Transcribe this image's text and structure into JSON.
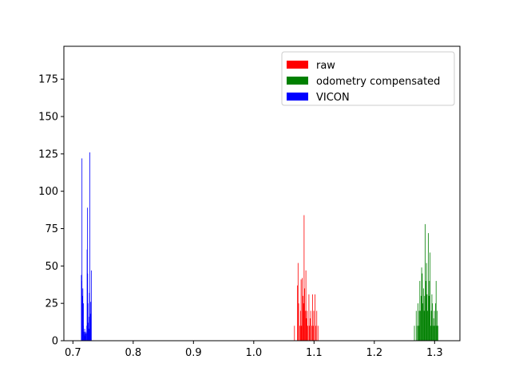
{
  "chart_data": {
    "type": "histogram",
    "title": "",
    "xlabel": "",
    "ylabel": "",
    "xlim": [
      0.685,
      1.342
    ],
    "ylim": [
      0,
      197
    ],
    "x_ticks": [
      0.7,
      0.8,
      0.9,
      1.0,
      1.1,
      1.2,
      1.3
    ],
    "x_tick_labels": [
      "0.7",
      "0.8",
      "0.9",
      "1.0",
      "1.1",
      "1.2",
      "1.3"
    ],
    "y_ticks": [
      0,
      25,
      50,
      75,
      100,
      125,
      150,
      175
    ],
    "y_tick_labels": [
      "0",
      "25",
      "50",
      "75",
      "100",
      "125",
      "150",
      "175"
    ],
    "grid": false,
    "legend_position": "upper right",
    "series": [
      {
        "name": "raw",
        "color": "#ff0000",
        "bin_width": 0.00105,
        "bins": [
          [
            1.067,
            10
          ],
          [
            1.072,
            37
          ],
          [
            1.073,
            52
          ],
          [
            1.074,
            25
          ],
          [
            1.076,
            10
          ],
          [
            1.077,
            20
          ],
          [
            1.078,
            41
          ],
          [
            1.079,
            10
          ],
          [
            1.08,
            42
          ],
          [
            1.081,
            30
          ],
          [
            1.082,
            25
          ],
          [
            1.083,
            84
          ],
          [
            1.084,
            35
          ],
          [
            1.085,
            20
          ],
          [
            1.086,
            47
          ],
          [
            1.087,
            15
          ],
          [
            1.088,
            20
          ],
          [
            1.089,
            10
          ],
          [
            1.091,
            31
          ],
          [
            1.092,
            10
          ],
          [
            1.093,
            15
          ],
          [
            1.094,
            20
          ],
          [
            1.096,
            10
          ],
          [
            1.097,
            31
          ],
          [
            1.098,
            10
          ],
          [
            1.099,
            20
          ],
          [
            1.101,
            31
          ],
          [
            1.102,
            10
          ],
          [
            1.104,
            20
          ],
          [
            1.106,
            10
          ]
        ]
      },
      {
        "name": "odometry compensated",
        "color": "#008000",
        "bin_width": 0.00105,
        "bins": [
          [
            1.266,
            10
          ],
          [
            1.269,
            20
          ],
          [
            1.271,
            10
          ],
          [
            1.272,
            25
          ],
          [
            1.273,
            10
          ],
          [
            1.274,
            20
          ],
          [
            1.275,
            40
          ],
          [
            1.276,
            20
          ],
          [
            1.277,
            30
          ],
          [
            1.278,
            49
          ],
          [
            1.279,
            45
          ],
          [
            1.28,
            25
          ],
          [
            1.281,
            35
          ],
          [
            1.282,
            20
          ],
          [
            1.283,
            30
          ],
          [
            1.284,
            78
          ],
          [
            1.285,
            40
          ],
          [
            1.286,
            52
          ],
          [
            1.287,
            31
          ],
          [
            1.288,
            20
          ],
          [
            1.289,
            72
          ],
          [
            1.29,
            30
          ],
          [
            1.291,
            40
          ],
          [
            1.292,
            59
          ],
          [
            1.293,
            10
          ],
          [
            1.294,
            20
          ],
          [
            1.295,
            31
          ],
          [
            1.296,
            25
          ],
          [
            1.297,
            10
          ],
          [
            1.298,
            15
          ],
          [
            1.299,
            20
          ],
          [
            1.3,
            10
          ],
          [
            1.301,
            25
          ],
          [
            1.302,
            40
          ],
          [
            1.303,
            10
          ],
          [
            1.304,
            20
          ],
          [
            1.305,
            10
          ]
        ]
      },
      {
        "name": "VICON",
        "color": "#0000ff",
        "bin_width": 0.00052,
        "bins": [
          [
            0.7135,
            44
          ],
          [
            0.714,
            40
          ],
          [
            0.7145,
            122
          ],
          [
            0.715,
            30
          ],
          [
            0.7155,
            20
          ],
          [
            0.716,
            35
          ],
          [
            0.7165,
            10
          ],
          [
            0.717,
            25
          ],
          [
            0.718,
            6
          ],
          [
            0.7185,
            4
          ],
          [
            0.719,
            8
          ],
          [
            0.7195,
            5
          ],
          [
            0.72,
            3
          ],
          [
            0.7205,
            6
          ],
          [
            0.721,
            4
          ],
          [
            0.7215,
            5
          ],
          [
            0.7225,
            10
          ],
          [
            0.723,
            61
          ],
          [
            0.7235,
            89
          ],
          [
            0.724,
            45
          ],
          [
            0.7245,
            25
          ],
          [
            0.725,
            12
          ],
          [
            0.7255,
            6
          ],
          [
            0.726,
            8
          ],
          [
            0.7265,
            16
          ],
          [
            0.727,
            32
          ],
          [
            0.7275,
            126
          ],
          [
            0.728,
            18
          ],
          [
            0.7285,
            26
          ],
          [
            0.729,
            14
          ],
          [
            0.7295,
            18
          ],
          [
            0.73,
            47
          ]
        ]
      }
    ]
  }
}
